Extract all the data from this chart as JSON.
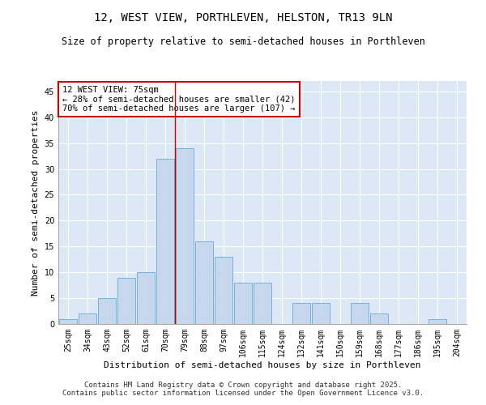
{
  "title": "12, WEST VIEW, PORTHLEVEN, HELSTON, TR13 9LN",
  "subtitle": "Size of property relative to semi-detached houses in Porthleven",
  "xlabel": "Distribution of semi-detached houses by size in Porthleven",
  "ylabel": "Number of semi-detached properties",
  "categories": [
    "25sqm",
    "34sqm",
    "43sqm",
    "52sqm",
    "61sqm",
    "70sqm",
    "79sqm",
    "88sqm",
    "97sqm",
    "106sqm",
    "115sqm",
    "124sqm",
    "132sqm",
    "141sqm",
    "150sqm",
    "159sqm",
    "168sqm",
    "177sqm",
    "186sqm",
    "195sqm",
    "204sqm"
  ],
  "values": [
    1,
    2,
    5,
    9,
    10,
    32,
    34,
    16,
    13,
    8,
    8,
    0,
    4,
    4,
    0,
    4,
    2,
    0,
    0,
    1,
    0
  ],
  "bar_color": "#c5d8ed",
  "bar_edge_color": "#7aafd4",
  "property_line_x": 5.5,
  "annotation_text": "12 WEST VIEW: 75sqm\n← 28% of semi-detached houses are smaller (42)\n70% of semi-detached houses are larger (107) →",
  "annotation_box_color": "#ffffff",
  "annotation_box_edge": "#cc0000",
  "vline_color": "#cc0000",
  "ylim": [
    0,
    47
  ],
  "yticks": [
    0,
    5,
    10,
    15,
    20,
    25,
    30,
    35,
    40,
    45
  ],
  "background_color": "#dce8f5",
  "grid_color": "#ffffff",
  "footnote": "Contains HM Land Registry data © Crown copyright and database right 2025.\nContains public sector information licensed under the Open Government Licence v3.0.",
  "title_fontsize": 10,
  "subtitle_fontsize": 8.5,
  "xlabel_fontsize": 8,
  "ylabel_fontsize": 8,
  "tick_fontsize": 7,
  "annotation_fontsize": 7.5,
  "footnote_fontsize": 6.5
}
